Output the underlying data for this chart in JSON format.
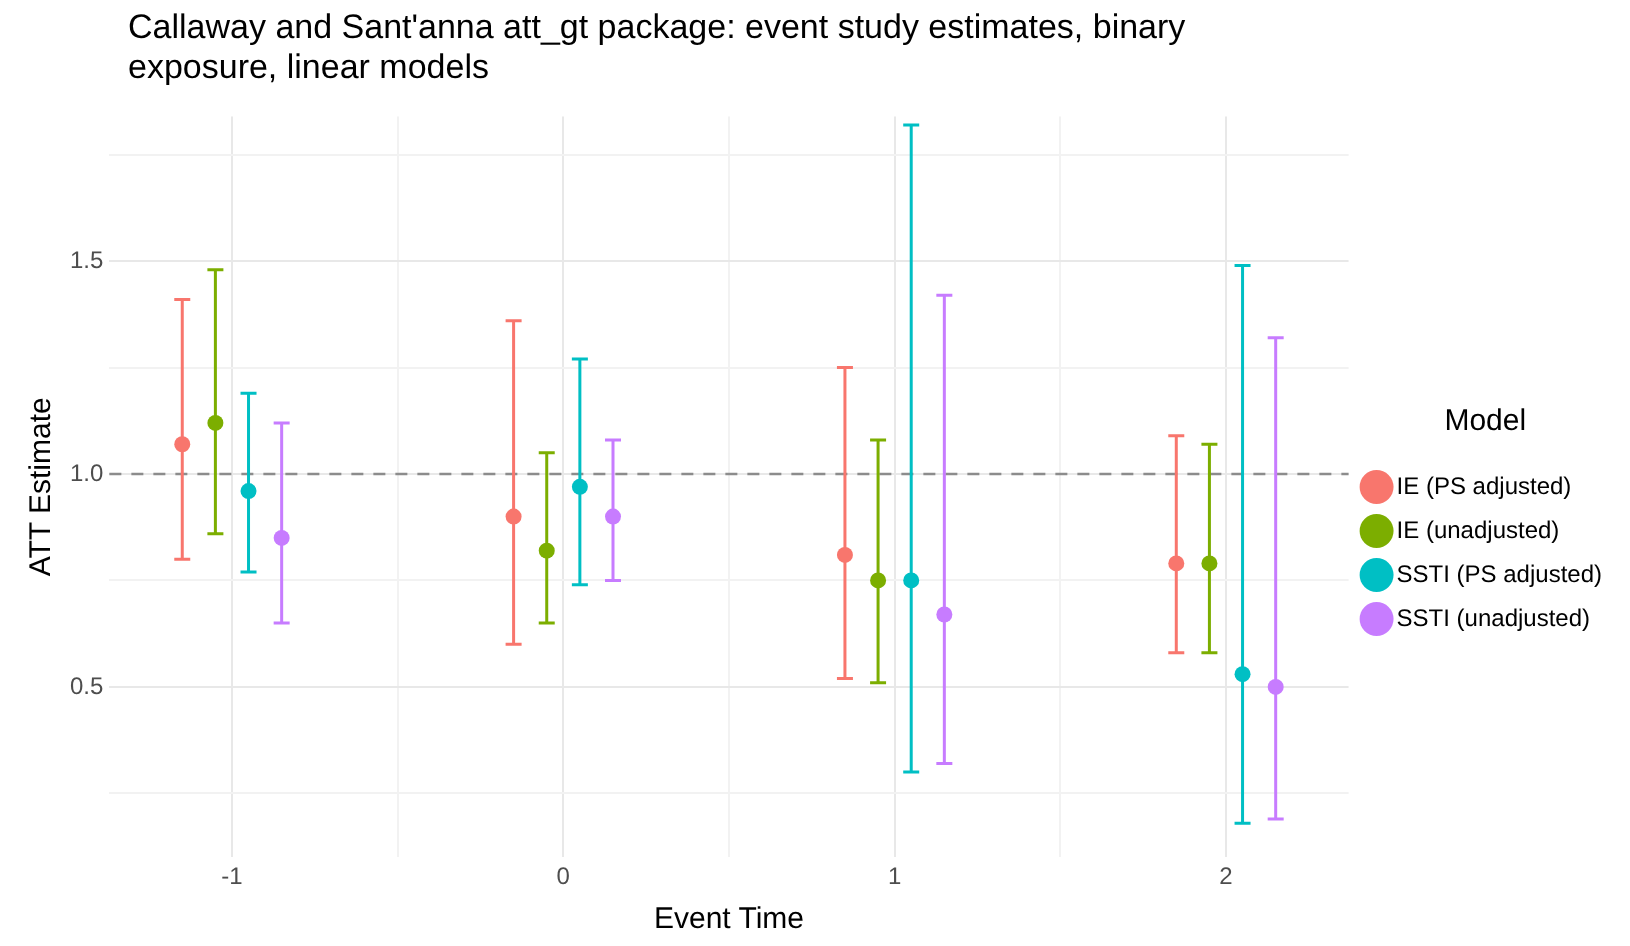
{
  "chart_data": {
    "type": "scatter",
    "title": "Callaway and Sant'anna att_gt package: event study estimates, binary exposure, linear models",
    "xlabel": "Event Time",
    "ylabel": "ATT Estimate",
    "legend_title": "Model",
    "legend": "right",
    "grid": true,
    "marker": "circle",
    "xlim": [
      -1.37,
      2.37
    ],
    "xticks": [
      -1,
      {
        "value": -0.5,
        "label": null
      },
      0,
      {
        "value": 0.5,
        "label": null
      },
      1,
      {
        "value": 1.5,
        "label": null
      },
      2
    ],
    "ylim": [
      0.1,
      1.84
    ],
    "yticks": [
      {
        "value": 0.25,
        "label": null
      },
      0.5,
      {
        "value": 0.75,
        "label": null
      },
      {
        "value": 1,
        "label": "1.0"
      },
      {
        "value": 1.25,
        "label": null
      },
      1.5,
      {
        "value": 1.75,
        "label": null
      }
    ],
    "series": [
      {
        "name": "IE (PS adjusted)",
        "color": "#f8766d",
        "x": [
          -1.15,
          -0.15,
          0.85,
          1.85
        ],
        "values": [
          1.07,
          0.9,
          0.81,
          0.79
        ],
        "errors": [
          [
            0.8,
            1.41
          ],
          [
            0.6,
            1.36
          ],
          [
            0.52,
            1.25
          ],
          [
            0.58,
            1.09
          ]
        ]
      },
      {
        "name": "IE (unadjusted)",
        "color": "#7cae00",
        "x": [
          -1.05,
          -0.05,
          0.95,
          1.95
        ],
        "values": [
          1.12,
          0.82,
          0.75,
          0.79
        ],
        "errors": [
          [
            0.86,
            1.48
          ],
          [
            0.65,
            1.05
          ],
          [
            0.51,
            1.08
          ],
          [
            0.58,
            1.07
          ]
        ]
      },
      {
        "name": "SSTI (PS adjusted)",
        "color": "#00bfc4",
        "x": [
          -0.95,
          0.05,
          1.05,
          2.05
        ],
        "values": [
          0.96,
          0.97,
          0.75,
          0.53
        ],
        "errors": [
          [
            0.77,
            1.19
          ],
          [
            0.74,
            1.27
          ],
          [
            0.3,
            1.82
          ],
          [
            0.18,
            1.49
          ]
        ]
      },
      {
        "name": "SSTI (unadjusted)",
        "color": "#c77cff",
        "x": [
          -0.85,
          0.15,
          1.15,
          2.15
        ],
        "values": [
          0.85,
          0.9,
          0.67,
          0.5
        ],
        "errors": [
          [
            0.65,
            1.12
          ],
          [
            0.75,
            1.08
          ],
          [
            0.32,
            1.42
          ],
          [
            0.19,
            1.32
          ]
        ]
      }
    ],
    "ref_lines": [
      {
        "axis": "y",
        "value": 1,
        "label": null,
        "color": "#8c8c8c",
        "line_style": "dashed"
      }
    ]
  }
}
